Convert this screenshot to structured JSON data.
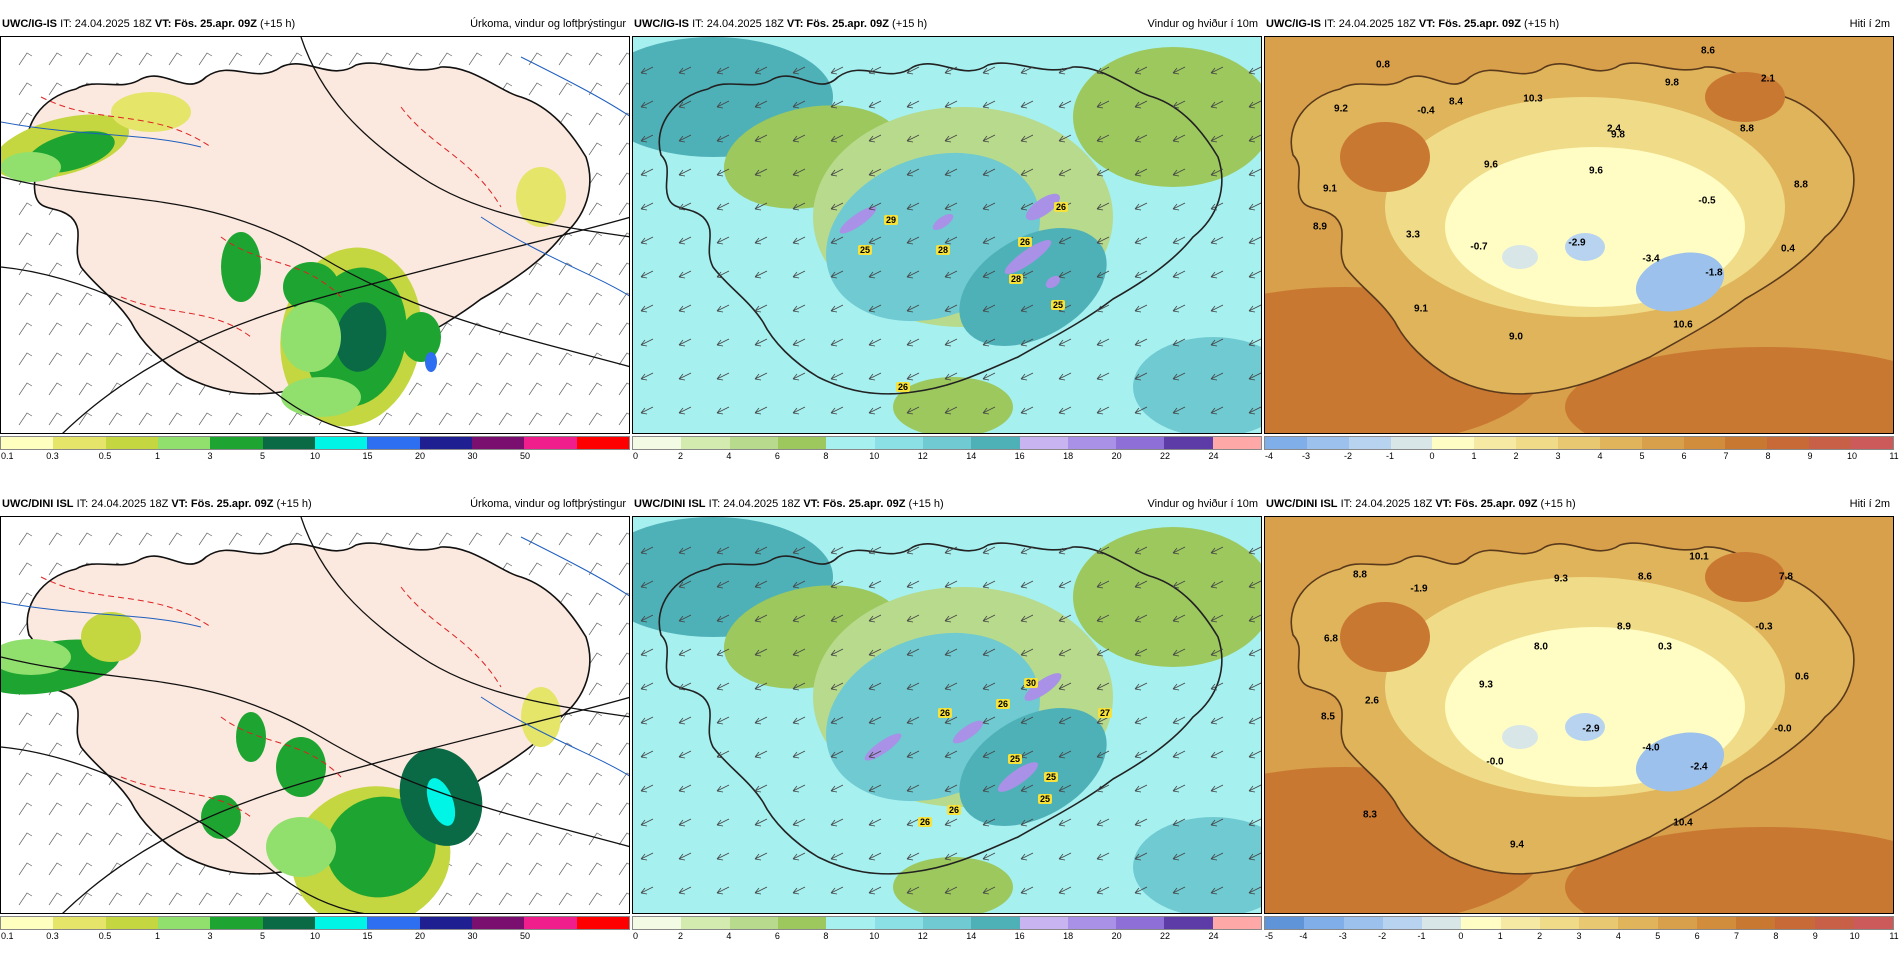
{
  "panels": [
    {
      "model": "UWC/IG-IS",
      "it": "IT: 24.04.2025 18Z",
      "vt_label": "VT:",
      "vt": "Fös. 25.apr. 09Z",
      "lead": "(+15 h)",
      "title": "Úrkoma, vindur og loftþrýstingur",
      "legend_colors": [
        "#ffffc0",
        "#e5e56a",
        "#c4d640",
        "#91e06e",
        "#1ea531",
        "#0b6a46",
        "#00f5e6",
        "#2e6ef0",
        "#1f1f91",
        "#7a0f70",
        "#f01e8c",
        "#ff0000"
      ],
      "legend_ticks": [
        "0.1",
        "0.3",
        "0.5",
        "1",
        "3",
        "5",
        "10",
        "15",
        "20",
        "30",
        "50"
      ],
      "labels": [],
      "gusts": []
    },
    {
      "model": "UWC/IG-IS",
      "it": "IT: 24.04.2025 18Z",
      "vt_label": "VT:",
      "vt": "Fös. 25.apr. 09Z",
      "lead": "(+15 h)",
      "title": "Vindur og hviður í 10m",
      "legend_colors": [
        "#f4fbe4",
        "#d4ebb0",
        "#b8da8c",
        "#9cc85e",
        "#a6f0f0",
        "#8be0e6",
        "#6fcad2",
        "#4fb1b8",
        "#c8b4f0",
        "#a891e6",
        "#8e6fd8",
        "#5e3ca8",
        "#ffa8a8"
      ],
      "legend_ticks": [
        "0",
        "2",
        "4",
        "6",
        "8",
        "10",
        "12",
        "14",
        "16",
        "18",
        "20",
        "22",
        "24"
      ],
      "labels": [],
      "gusts": [
        "29",
        "25",
        "28",
        "26",
        "26",
        "28",
        "25",
        "26"
      ]
    },
    {
      "model": "UWC/IG-IS",
      "it": "IT: 24.04.2025 18Z",
      "vt_label": "VT:",
      "vt": "Fös. 25.apr. 09Z",
      "lead": "(+15 h)",
      "title": "Hiti í 2m",
      "legend_colors": [
        "#7faee8",
        "#9cc1ec",
        "#b7d3f0",
        "#d8e6e8",
        "#fffdc4",
        "#f6e9a4",
        "#f0db88",
        "#e8c870",
        "#e0b45a",
        "#d8a04a",
        "#d18c3c",
        "#c97832",
        "#c86a38",
        "#c86048",
        "#cc5a5a"
      ],
      "legend_ticks": [
        "-4",
        "-3",
        "-2",
        "-1",
        "0",
        "1",
        "2",
        "3",
        "4",
        "5",
        "6",
        "7",
        "8",
        "9",
        "10",
        "11"
      ],
      "labels": [
        "0.8",
        "8.6",
        "2.1",
        "9.2",
        "-0.4",
        "8.4",
        "10.3",
        "9.8",
        "2.4",
        "8.8",
        "9.8",
        "9.6",
        "9.6",
        "8.8",
        "9.1",
        "-0.5",
        "8.9",
        "3.3",
        "-0.7",
        "-2.9",
        "-3.4",
        "0.4",
        "-1.8",
        "9.1",
        "9.0",
        "10.6"
      ],
      "gusts": []
    },
    {
      "model": "UWC/DINI ISL",
      "it": "IT: 24.04.2025 18Z",
      "vt_label": "VT:",
      "vt": "Fös. 25.apr. 09Z",
      "lead": "(+15 h)",
      "title": "Úrkoma, vindur og loftþrýstingur",
      "legend_colors": [
        "#ffffc0",
        "#e5e56a",
        "#c4d640",
        "#91e06e",
        "#1ea531",
        "#0b6a46",
        "#00f5e6",
        "#2e6ef0",
        "#1f1f91",
        "#7a0f70",
        "#f01e8c",
        "#ff0000"
      ],
      "legend_ticks": [
        "0.1",
        "0.3",
        "0.5",
        "1",
        "3",
        "5",
        "10",
        "15",
        "20",
        "30",
        "50"
      ],
      "labels": [],
      "gusts": []
    },
    {
      "model": "UWC/DINI ISL",
      "it": "IT: 24.04.2025 18Z",
      "vt_label": "VT:",
      "vt": "Fös. 25.apr. 09Z",
      "lead": "(+15 h)",
      "title": "Vindur og hviður í 10m",
      "legend_colors": [
        "#f4fbe4",
        "#d4ebb0",
        "#b8da8c",
        "#9cc85e",
        "#a6f0f0",
        "#8be0e6",
        "#6fcad2",
        "#4fb1b8",
        "#c8b4f0",
        "#a891e6",
        "#8e6fd8",
        "#5e3ca8",
        "#ffa8a8"
      ],
      "legend_ticks": [
        "0",
        "2",
        "4",
        "6",
        "8",
        "10",
        "12",
        "14",
        "16",
        "18",
        "20",
        "22",
        "24"
      ],
      "labels": [],
      "gusts": [
        "30",
        "26",
        "26",
        "27",
        "25",
        "25",
        "25",
        "26",
        "26"
      ]
    },
    {
      "model": "UWC/DINI ISL",
      "it": "IT: 24.04.2025 18Z",
      "vt_label": "VT:",
      "vt": "Fös. 25.apr. 09Z",
      "lead": "(+15 h)",
      "title": "Hiti í 2m",
      "legend_colors": [
        "#5f95d8",
        "#7faee8",
        "#9cc1ec",
        "#b7d3f0",
        "#d8e6e8",
        "#fffdc4",
        "#f6e9a4",
        "#f0db88",
        "#e8c870",
        "#e0b45a",
        "#d8a04a",
        "#d18c3c",
        "#c97832",
        "#c86a38",
        "#c86048",
        "#cc5a5a"
      ],
      "legend_ticks": [
        "-5",
        "-4",
        "-3",
        "-2",
        "-1",
        "0",
        "1",
        "2",
        "3",
        "4",
        "5",
        "6",
        "7",
        "8",
        "9",
        "10",
        "11"
      ],
      "labels": [
        "10.1",
        "8.8",
        "9.3",
        "8.6",
        "7.8",
        "-1.9",
        "8.9",
        "-0.3",
        "6.8",
        "8.0",
        "0.3",
        "0.6",
        "9.3",
        "2.6",
        "8.5",
        "-2.9",
        "-0.0",
        "-4.0",
        "-0.0",
        "-2.4",
        "8.3",
        "10.4",
        "9.4"
      ],
      "gusts": []
    }
  ]
}
